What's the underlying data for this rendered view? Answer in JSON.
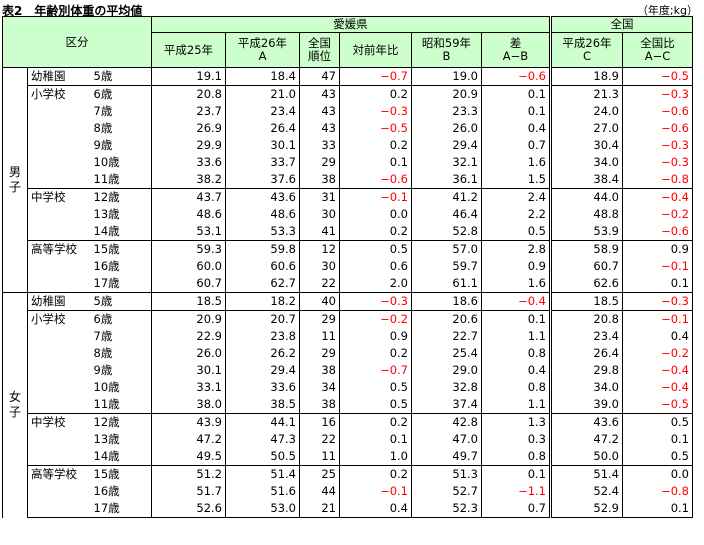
{
  "title": "表2　年齢別体重の平均値",
  "unit": "（年度;kg）",
  "header": {
    "kubun": "区分",
    "ehime": "愛媛県",
    "zenkoku": "全国",
    "cols": [
      {
        "l1": "平成25年",
        "l2": ""
      },
      {
        "l1": "平成26年",
        "l2": "A"
      },
      {
        "l1": "全国",
        "l2": "順位"
      },
      {
        "l1": "対前年比",
        "l2": ""
      },
      {
        "l1": "昭和59年",
        "l2": "B"
      },
      {
        "l1": "差",
        "l2": "A−B"
      },
      {
        "l1": "平成26年",
        "l2": "C"
      },
      {
        "l1": "全国比",
        "l2": "A−C"
      }
    ]
  },
  "sexes": [
    {
      "label": "男子",
      "groups": [
        {
          "label": "幼稚園",
          "rows": [
            {
              "age": "5歳",
              "v": [
                "19.1",
                "18.4",
                "47",
                "−0.7",
                "19.0",
                "−0.6",
                "18.9",
                "−0.5"
              ]
            }
          ]
        },
        {
          "label": "小学校",
          "rows": [
            {
              "age": "6歳",
              "v": [
                "20.8",
                "21.0",
                "43",
                "0.2",
                "20.9",
                "0.1",
                "21.3",
                "−0.3"
              ]
            },
            {
              "age": "7歳",
              "v": [
                "23.7",
                "23.4",
                "43",
                "−0.3",
                "23.3",
                "0.1",
                "24.0",
                "−0.6"
              ]
            },
            {
              "age": "8歳",
              "v": [
                "26.9",
                "26.4",
                "43",
                "−0.5",
                "26.0",
                "0.4",
                "27.0",
                "−0.6"
              ]
            },
            {
              "age": "9歳",
              "v": [
                "29.9",
                "30.1",
                "33",
                "0.2",
                "29.4",
                "0.7",
                "30.4",
                "−0.3"
              ]
            },
            {
              "age": "10歳",
              "v": [
                "33.6",
                "33.7",
                "29",
                "0.1",
                "32.1",
                "1.6",
                "34.0",
                "−0.3"
              ]
            },
            {
              "age": "11歳",
              "v": [
                "38.2",
                "37.6",
                "38",
                "−0.6",
                "36.1",
                "1.5",
                "38.4",
                "−0.8"
              ]
            }
          ]
        },
        {
          "label": "中学校",
          "rows": [
            {
              "age": "12歳",
              "v": [
                "43.7",
                "43.6",
                "31",
                "−0.1",
                "41.2",
                "2.4",
                "44.0",
                "−0.4"
              ]
            },
            {
              "age": "13歳",
              "v": [
                "48.6",
                "48.6",
                "30",
                "0.0",
                "46.4",
                "2.2",
                "48.8",
                "−0.2"
              ]
            },
            {
              "age": "14歳",
              "v": [
                "53.1",
                "53.3",
                "41",
                "0.2",
                "52.8",
                "0.5",
                "53.9",
                "−0.6"
              ]
            }
          ]
        },
        {
          "label": "高等学校",
          "rows": [
            {
              "age": "15歳",
              "v": [
                "59.3",
                "59.8",
                "12",
                "0.5",
                "57.0",
                "2.8",
                "58.9",
                "0.9"
              ]
            },
            {
              "age": "16歳",
              "v": [
                "60.0",
                "60.6",
                "30",
                "0.6",
                "59.7",
                "0.9",
                "60.7",
                "−0.1"
              ]
            },
            {
              "age": "17歳",
              "v": [
                "60.7",
                "62.7",
                "22",
                "2.0",
                "61.1",
                "1.6",
                "62.6",
                "0.1"
              ]
            }
          ]
        }
      ]
    },
    {
      "label": "女子",
      "groups": [
        {
          "label": "幼稚園",
          "rows": [
            {
              "age": "5歳",
              "v": [
                "18.5",
                "18.2",
                "40",
                "−0.3",
                "18.6",
                "−0.4",
                "18.5",
                "−0.3"
              ]
            }
          ]
        },
        {
          "label": "小学校",
          "rows": [
            {
              "age": "6歳",
              "v": [
                "20.9",
                "20.7",
                "29",
                "−0.2",
                "20.6",
                "0.1",
                "20.8",
                "−0.1"
              ]
            },
            {
              "age": "7歳",
              "v": [
                "22.9",
                "23.8",
                "11",
                "0.9",
                "22.7",
                "1.1",
                "23.4",
                "0.4"
              ]
            },
            {
              "age": "8歳",
              "v": [
                "26.0",
                "26.2",
                "29",
                "0.2",
                "25.4",
                "0.8",
                "26.4",
                "−0.2"
              ]
            },
            {
              "age": "9歳",
              "v": [
                "30.1",
                "29.4",
                "38",
                "−0.7",
                "29.0",
                "0.4",
                "29.8",
                "−0.4"
              ]
            },
            {
              "age": "10歳",
              "v": [
                "33.1",
                "33.6",
                "34",
                "0.5",
                "32.8",
                "0.8",
                "34.0",
                "−0.4"
              ]
            },
            {
              "age": "11歳",
              "v": [
                "38.0",
                "38.5",
                "38",
                "0.5",
                "37.4",
                "1.1",
                "39.0",
                "−0.5"
              ]
            }
          ]
        },
        {
          "label": "中学校",
          "rows": [
            {
              "age": "12歳",
              "v": [
                "43.9",
                "44.1",
                "16",
                "0.2",
                "42.8",
                "1.3",
                "43.6",
                "0.5"
              ]
            },
            {
              "age": "13歳",
              "v": [
                "47.2",
                "47.3",
                "22",
                "0.1",
                "47.0",
                "0.3",
                "47.2",
                "0.1"
              ]
            },
            {
              "age": "14歳",
              "v": [
                "49.5",
                "50.5",
                "11",
                "1.0",
                "49.7",
                "0.8",
                "50.0",
                "0.5"
              ]
            }
          ]
        },
        {
          "label": "高等学校",
          "rows": [
            {
              "age": "15歳",
              "v": [
                "51.2",
                "51.4",
                "25",
                "0.2",
                "51.3",
                "0.1",
                "51.4",
                "0.0"
              ]
            },
            {
              "age": "16歳",
              "v": [
                "51.7",
                "51.6",
                "44",
                "−0.1",
                "52.7",
                "−1.1",
                "52.4",
                "−0.8"
              ]
            },
            {
              "age": "17歳",
              "v": [
                "52.6",
                "53.0",
                "21",
                "0.4",
                "52.3",
                "0.7",
                "52.9",
                "0.1"
              ]
            }
          ]
        }
      ]
    }
  ],
  "colors": {
    "header_bg": "#ccffcc",
    "negative": "#ff0000"
  }
}
